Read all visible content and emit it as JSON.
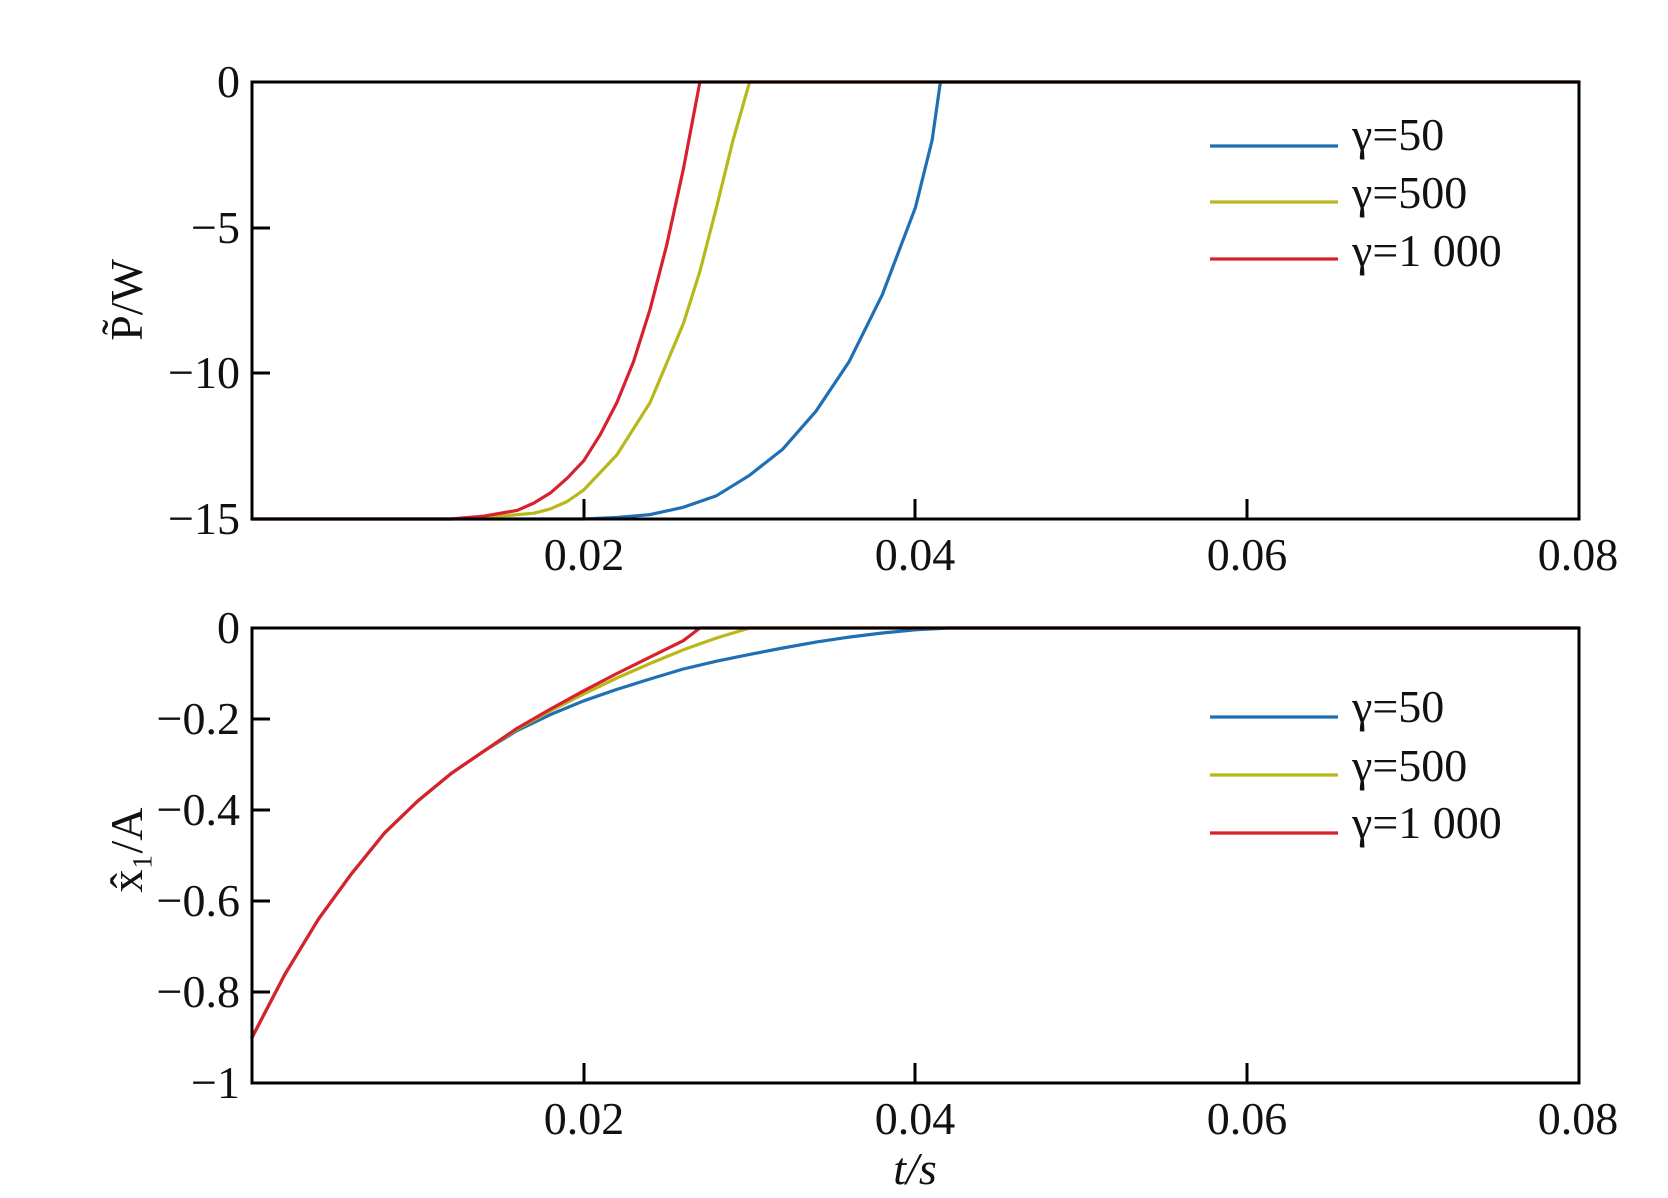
{
  "chart_data": [
    {
      "type": "line",
      "ylabel": "P̃/W",
      "xlabel": "",
      "xlim": [
        0,
        0.08
      ],
      "ylim": [
        -15,
        0
      ],
      "xticks": [
        "0.02",
        "0.04",
        "0.06",
        "0.08"
      ],
      "yticks": [
        "0",
        "−5",
        "−10",
        "−15"
      ],
      "legend_position": "top-right",
      "series": [
        {
          "name": "γ=50",
          "color": "#1f6fb4",
          "x": [
            0,
            0.01,
            0.015,
            0.018,
            0.02,
            0.022,
            0.024,
            0.026,
            0.028,
            0.03,
            0.032,
            0.034,
            0.036,
            0.038,
            0.04,
            0.041,
            0.0415,
            0.05,
            0.06,
            0.07,
            0.08
          ],
          "y": [
            -15,
            -15,
            -15,
            -15,
            -15,
            -14.95,
            -14.85,
            -14.6,
            -14.2,
            -13.5,
            -12.6,
            -11.3,
            -9.6,
            -7.3,
            -4.3,
            -2.0,
            0,
            0,
            0,
            0,
            0
          ]
        },
        {
          "name": "γ=500",
          "color": "#b8b81a",
          "x": [
            0,
            0.012,
            0.015,
            0.017,
            0.018,
            0.019,
            0.02,
            0.022,
            0.024,
            0.026,
            0.027,
            0.028,
            0.029,
            0.03,
            0.04,
            0.05,
            0.06,
            0.07,
            0.08
          ],
          "y": [
            -15,
            -15,
            -14.9,
            -14.8,
            -14.65,
            -14.4,
            -14.0,
            -12.8,
            -11.0,
            -8.3,
            -6.5,
            -4.3,
            -2.0,
            0,
            0,
            0,
            0,
            0,
            0
          ]
        },
        {
          "name": "γ=1 000",
          "color": "#d8202f",
          "x": [
            0,
            0.012,
            0.014,
            0.016,
            0.017,
            0.018,
            0.019,
            0.02,
            0.021,
            0.022,
            0.023,
            0.024,
            0.025,
            0.026,
            0.0265,
            0.027,
            0.03,
            0.04,
            0.05,
            0.06,
            0.07,
            0.08
          ],
          "y": [
            -15,
            -15,
            -14.9,
            -14.7,
            -14.45,
            -14.1,
            -13.6,
            -13.0,
            -12.1,
            -11.0,
            -9.6,
            -7.8,
            -5.6,
            -3.0,
            -1.5,
            0,
            0,
            0,
            0,
            0,
            0,
            0
          ]
        }
      ]
    },
    {
      "type": "line",
      "ylabel": "x̂₁/A",
      "xlabel": "t/s",
      "xlim": [
        0,
        0.08
      ],
      "ylim": [
        -1,
        0
      ],
      "xticks": [
        "0.02",
        "0.04",
        "0.06",
        "0.08"
      ],
      "yticks": [
        "0",
        "−0.2",
        "−0.4",
        "−0.6",
        "−0.8",
        "−1"
      ],
      "legend_position": "top-right",
      "series": [
        {
          "name": "γ=50",
          "color": "#1f6fb4",
          "x": [
            0,
            0.002,
            0.004,
            0.006,
            0.008,
            0.01,
            0.012,
            0.014,
            0.016,
            0.018,
            0.02,
            0.022,
            0.024,
            0.026,
            0.028,
            0.03,
            0.032,
            0.034,
            0.036,
            0.038,
            0.04,
            0.042,
            0.05,
            0.06,
            0.07,
            0.08
          ],
          "y": [
            -0.9,
            -0.76,
            -0.64,
            -0.54,
            -0.45,
            -0.38,
            -0.32,
            -0.27,
            -0.225,
            -0.19,
            -0.16,
            -0.135,
            -0.112,
            -0.09,
            -0.073,
            -0.058,
            -0.044,
            -0.031,
            -0.02,
            -0.011,
            -0.004,
            0,
            0,
            0,
            0,
            0
          ]
        },
        {
          "name": "γ=500",
          "color": "#b8b81a",
          "x": [
            0,
            0.002,
            0.004,
            0.006,
            0.008,
            0.01,
            0.012,
            0.014,
            0.016,
            0.018,
            0.02,
            0.022,
            0.024,
            0.026,
            0.028,
            0.03,
            0.04,
            0.05,
            0.06,
            0.07,
            0.08
          ],
          "y": [
            -0.9,
            -0.76,
            -0.64,
            -0.54,
            -0.45,
            -0.38,
            -0.32,
            -0.27,
            -0.222,
            -0.182,
            -0.145,
            -0.11,
            -0.078,
            -0.048,
            -0.022,
            0,
            0,
            0,
            0,
            0,
            0
          ]
        },
        {
          "name": "γ=1 000",
          "color": "#d8202f",
          "x": [
            0,
            0.002,
            0.004,
            0.006,
            0.008,
            0.01,
            0.012,
            0.014,
            0.016,
            0.018,
            0.02,
            0.022,
            0.024,
            0.026,
            0.027,
            0.03,
            0.04,
            0.05,
            0.06,
            0.07,
            0.08
          ],
          "y": [
            -0.9,
            -0.76,
            -0.64,
            -0.54,
            -0.45,
            -0.38,
            -0.32,
            -0.27,
            -0.22,
            -0.178,
            -0.138,
            -0.1,
            -0.064,
            -0.028,
            0,
            0,
            0,
            0,
            0,
            0,
            0
          ]
        }
      ]
    }
  ]
}
